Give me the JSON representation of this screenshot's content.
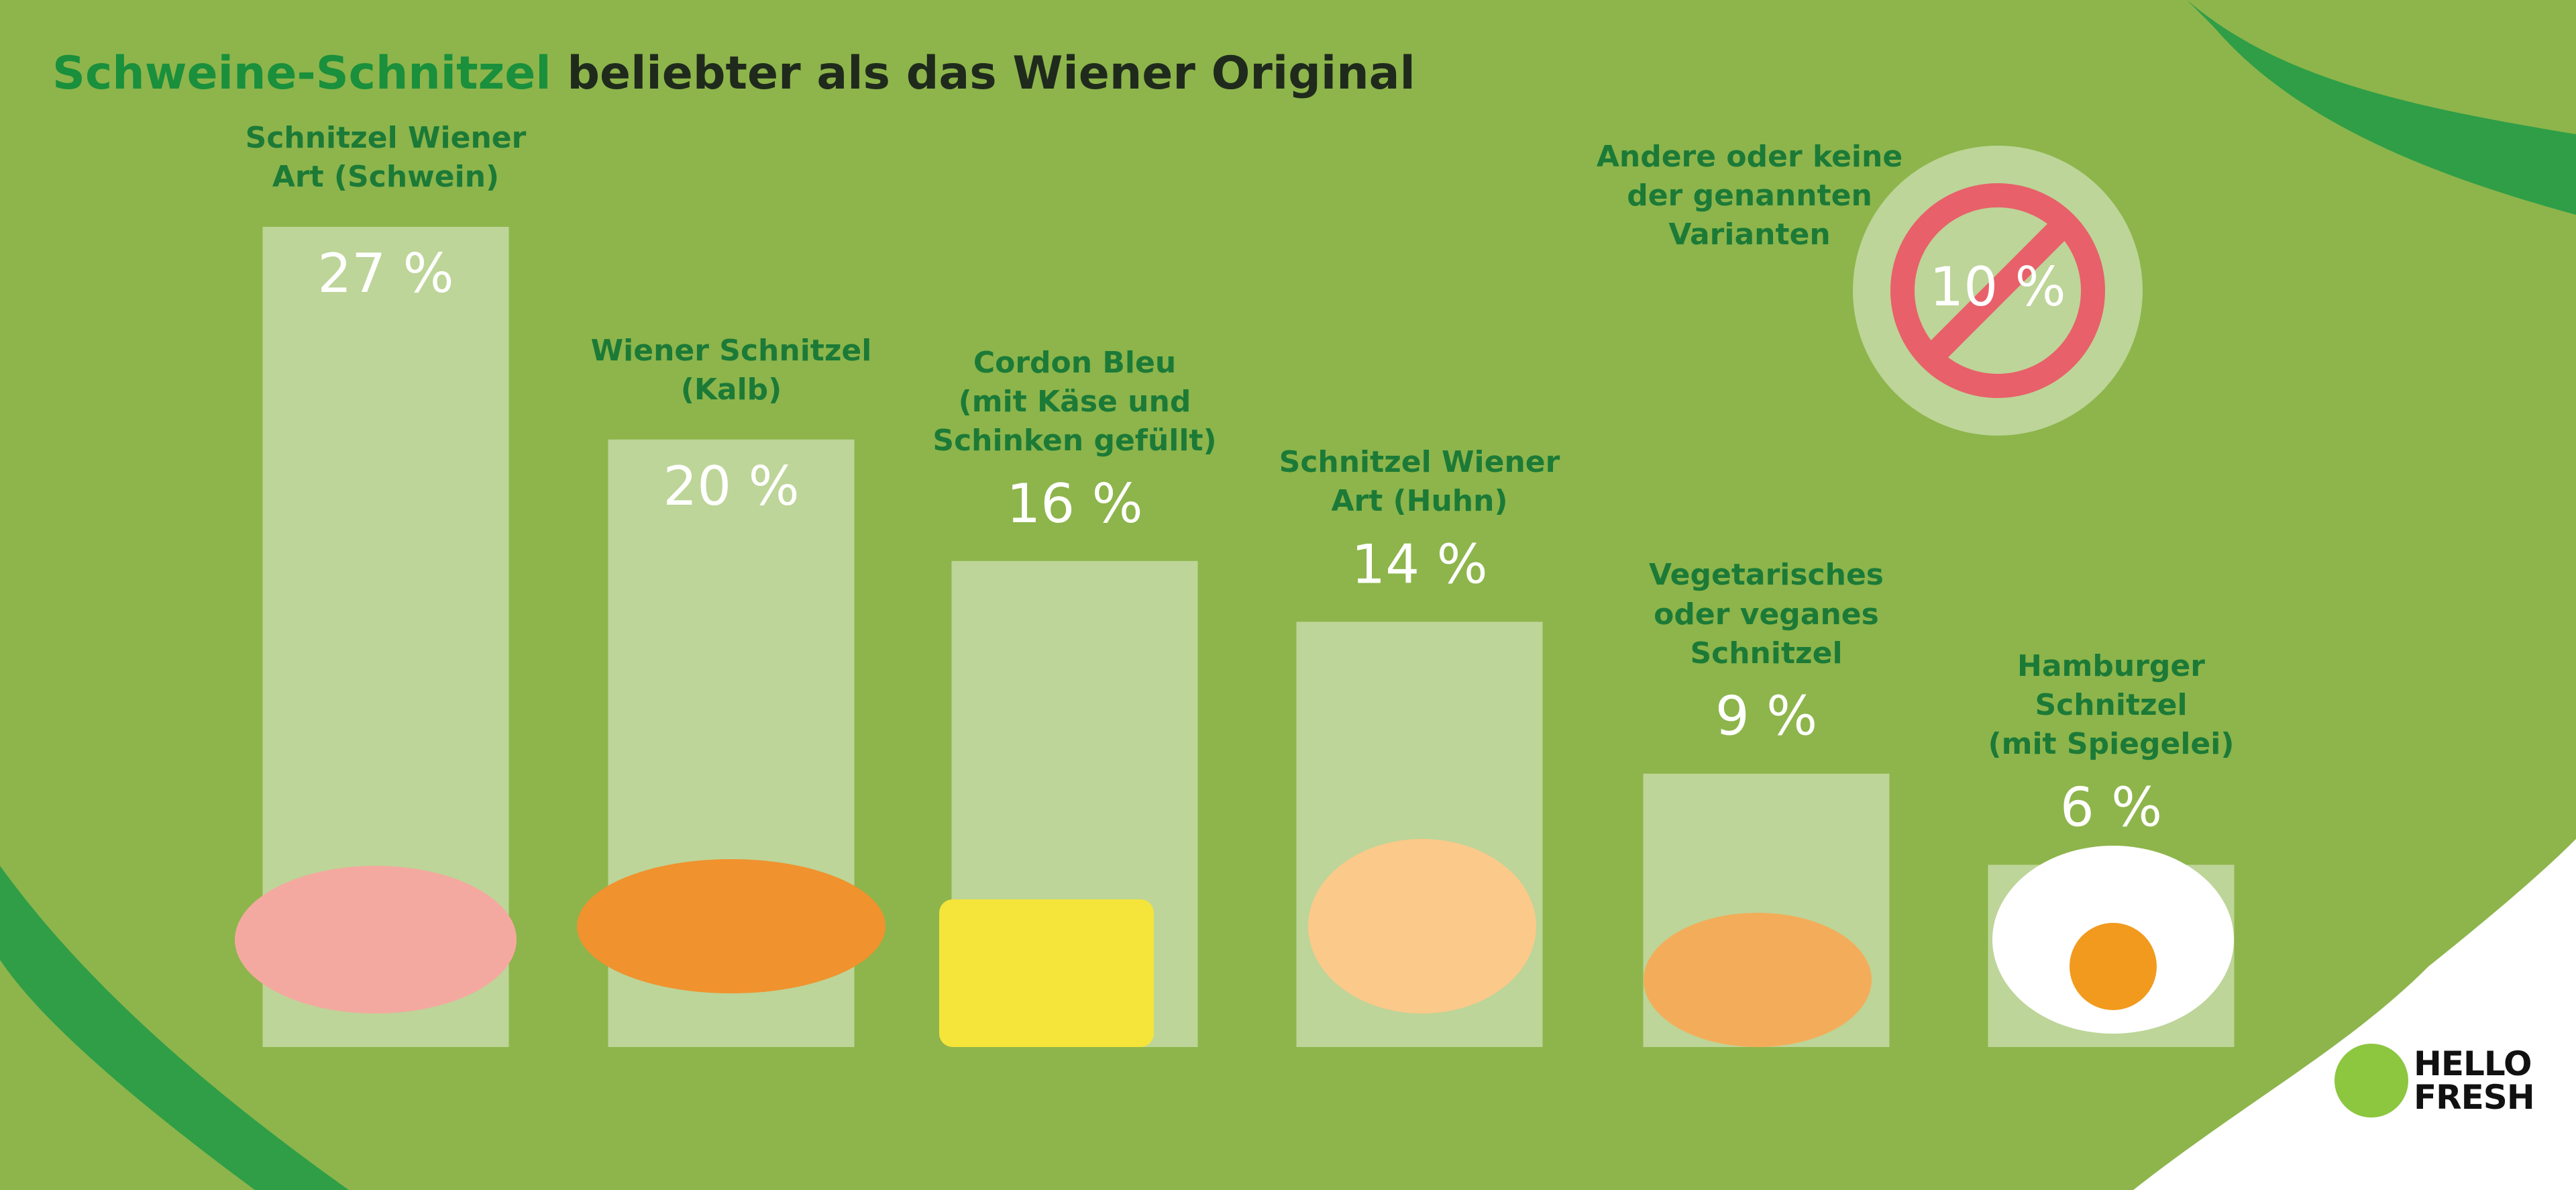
{
  "chart_data": {
    "type": "bar",
    "title_highlight": "Schweine-Schnitzel",
    "title": "beliebter als das Wiener Original",
    "categories": [
      "Schnitzel Wiener\nArt (Schwein)",
      "Wiener Schnitzel\n(Kalb)",
      "Cordon Bleu\n(mit Käse und\nSchinken gefüllt)",
      "Schnitzel Wiener\nArt (Huhn)",
      "Vegetarisches\noder veganes\nSchnitzel",
      "Hamburger\nSchnitzel\n(mit Spiegelei)"
    ],
    "values": [
      27,
      20,
      16,
      14,
      9,
      6
    ],
    "value_labels": [
      "27 %",
      "20 %",
      "16 %",
      "14 %",
      "9 %",
      "6 %"
    ],
    "color": "#bdd598",
    "other": {
      "label": "Andere oder keine\nder genannten\nVarianten",
      "value": 10,
      "value_label": "10 %"
    },
    "logo": "HELLO\nFRESH"
  }
}
